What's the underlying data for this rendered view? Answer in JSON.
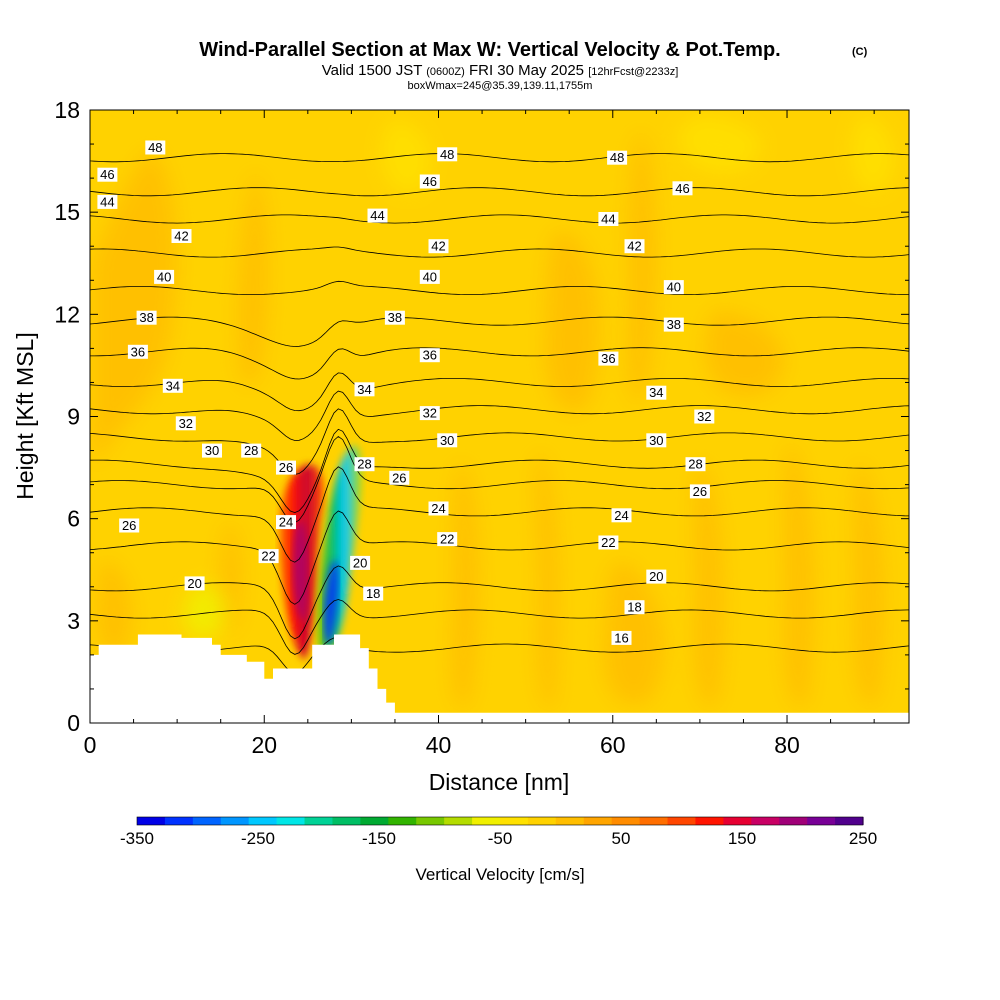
{
  "chart_data": {
    "type": "heatmap",
    "title": "Wind-Parallel Section at Max W: Vertical Velocity & Pot.Temp.",
    "title_mark": "(C)",
    "subtitle": {
      "valid": "Valid 1500 JST",
      "utc": "(0600Z)",
      "date": "FRI 30 May 2025",
      "forecast": "[12hrFcst@2233z]"
    },
    "box_info": "boxWmax=245@35.39,139.11,1755m",
    "xlabel": "Distance [nm]",
    "ylabel": "Height [Kft MSL]",
    "xlim": [
      0,
      94
    ],
    "ylim": [
      0,
      18
    ],
    "x_ticks": [
      "0",
      "20",
      "40",
      "60",
      "80"
    ],
    "y_ticks": [
      "0",
      "3",
      "6",
      "9",
      "12",
      "15",
      "18"
    ],
    "colorbar": {
      "label": "Vertical Velocity [cm/s]",
      "tick_labels": [
        "-350",
        "-250",
        "-150",
        "-50",
        "50",
        "150",
        "250"
      ],
      "range": [
        -350,
        250
      ],
      "colors": [
        "#0000e6",
        "#0032ff",
        "#0064ff",
        "#0096ff",
        "#00c8ff",
        "#00e6e6",
        "#00d296",
        "#00be64",
        "#00aa32",
        "#32b400",
        "#78c800",
        "#b4dc00",
        "#f0f000",
        "#ffe100",
        "#ffd200",
        "#ffbe00",
        "#ffa500",
        "#ff8c00",
        "#ff6e00",
        "#ff4600",
        "#ff1400",
        "#e60032",
        "#c80064",
        "#a00078",
        "#780096",
        "#50008c"
      ]
    },
    "terrain_kft": [
      [
        0,
        2.0
      ],
      [
        1,
        2.0
      ],
      [
        1,
        2.3
      ],
      [
        5.5,
        2.3
      ],
      [
        5.5,
        2.6
      ],
      [
        10.5,
        2.6
      ],
      [
        10.5,
        2.5
      ],
      [
        14,
        2.5
      ],
      [
        14,
        2.3
      ],
      [
        15,
        2.3
      ],
      [
        15,
        2.0
      ],
      [
        18,
        2.0
      ],
      [
        18,
        1.8
      ],
      [
        20,
        1.8
      ],
      [
        20,
        1.3
      ],
      [
        21,
        1.3
      ],
      [
        21,
        1.6
      ],
      [
        25.5,
        1.6
      ],
      [
        25.5,
        2.3
      ],
      [
        28,
        2.3
      ],
      [
        28,
        2.6
      ],
      [
        31,
        2.6
      ],
      [
        31,
        2.2
      ],
      [
        32,
        2.2
      ],
      [
        32,
        1.6
      ],
      [
        33,
        1.6
      ],
      [
        33,
        1.0
      ],
      [
        34,
        1.0
      ],
      [
        34,
        0.6
      ],
      [
        35,
        0.6
      ],
      [
        35,
        0.3
      ],
      [
        94,
        0.3
      ]
    ],
    "updraft": {
      "name": "",
      "x": 23.5,
      "y": 5.0,
      "w_max_cm_s": 245
    },
    "downdraft": {
      "name": "",
      "x": 28.0,
      "y": 4.0,
      "w_min_cm_s": -350
    },
    "theta_contours": [
      {
        "label": "16",
        "y": 2.2
      },
      {
        "label": "18",
        "y": 3.2
      },
      {
        "label": "20",
        "y": 4.0
      },
      {
        "label": "22",
        "y": 5.2
      },
      {
        "label": "24",
        "y": 6.2
      },
      {
        "label": "26",
        "y": 7.0
      },
      {
        "label": "28",
        "y": 7.6
      },
      {
        "label": "30",
        "y": 8.4
      },
      {
        "label": "32",
        "y": 9.2
      },
      {
        "label": "34",
        "y": 10.0
      },
      {
        "label": "36",
        "y": 10.9
      },
      {
        "label": "38",
        "y": 11.8
      },
      {
        "label": "40",
        "y": 12.7
      },
      {
        "label": "42",
        "y": 13.8
      },
      {
        "label": "44",
        "y": 14.8
      },
      {
        "label": "46",
        "y": 15.6
      },
      {
        "label": "48",
        "y": 16.6
      }
    ],
    "contour_labels": [
      {
        "text": "48",
        "x": 7.5,
        "y": 16.9
      },
      {
        "text": "46",
        "x": 2.0,
        "y": 16.1
      },
      {
        "text": "44",
        "x": 2.0,
        "y": 15.3
      },
      {
        "text": "42",
        "x": 10.5,
        "y": 14.3
      },
      {
        "text": "40",
        "x": 8.5,
        "y": 13.1
      },
      {
        "text": "38",
        "x": 6.5,
        "y": 11.9
      },
      {
        "text": "36",
        "x": 5.5,
        "y": 10.9
      },
      {
        "text": "34",
        "x": 9.5,
        "y": 9.9
      },
      {
        "text": "32",
        "x": 11.0,
        "y": 8.8
      },
      {
        "text": "30",
        "x": 14.0,
        "y": 8.0
      },
      {
        "text": "28",
        "x": 18.5,
        "y": 8.0
      },
      {
        "text": "26",
        "x": 22.5,
        "y": 7.5
      },
      {
        "text": "26",
        "x": 4.5,
        "y": 5.8
      },
      {
        "text": "24",
        "x": 22.5,
        "y": 5.9
      },
      {
        "text": "22",
        "x": 20.5,
        "y": 4.9
      },
      {
        "text": "20",
        "x": 12.0,
        "y": 4.1
      },
      {
        "text": "48",
        "x": 41.0,
        "y": 16.7
      },
      {
        "text": "46",
        "x": 39.0,
        "y": 15.9
      },
      {
        "text": "44",
        "x": 33.0,
        "y": 14.9
      },
      {
        "text": "42",
        "x": 40.0,
        "y": 14.0
      },
      {
        "text": "40",
        "x": 39.0,
        "y": 13.1
      },
      {
        "text": "38",
        "x": 35.0,
        "y": 11.9
      },
      {
        "text": "36",
        "x": 39.0,
        "y": 10.8
      },
      {
        "text": "34",
        "x": 31.5,
        "y": 9.8
      },
      {
        "text": "32",
        "x": 39.0,
        "y": 9.1
      },
      {
        "text": "30",
        "x": 41.0,
        "y": 8.3
      },
      {
        "text": "28",
        "x": 31.5,
        "y": 7.6
      },
      {
        "text": "26",
        "x": 35.5,
        "y": 7.2
      },
      {
        "text": "24",
        "x": 40.0,
        "y": 6.3
      },
      {
        "text": "22",
        "x": 41.0,
        "y": 5.4
      },
      {
        "text": "20",
        "x": 31.0,
        "y": 4.7
      },
      {
        "text": "18",
        "x": 32.5,
        "y": 3.8
      },
      {
        "text": "48",
        "x": 60.5,
        "y": 16.6
      },
      {
        "text": "46",
        "x": 68.0,
        "y": 15.7
      },
      {
        "text": "44",
        "x": 59.5,
        "y": 14.8
      },
      {
        "text": "42",
        "x": 62.5,
        "y": 14.0
      },
      {
        "text": "40",
        "x": 67.0,
        "y": 12.8
      },
      {
        "text": "38",
        "x": 67.0,
        "y": 11.7
      },
      {
        "text": "36",
        "x": 59.5,
        "y": 10.7
      },
      {
        "text": "34",
        "x": 65.0,
        "y": 9.7
      },
      {
        "text": "32",
        "x": 70.5,
        "y": 9.0
      },
      {
        "text": "30",
        "x": 65.0,
        "y": 8.3
      },
      {
        "text": "28",
        "x": 69.5,
        "y": 7.6
      },
      {
        "text": "26",
        "x": 70.0,
        "y": 6.8
      },
      {
        "text": "24",
        "x": 61.0,
        "y": 6.1
      },
      {
        "text": "22",
        "x": 59.5,
        "y": 5.3
      },
      {
        "text": "20",
        "x": 65.0,
        "y": 4.3
      },
      {
        "text": "18",
        "x": 62.5,
        "y": 3.4
      },
      {
        "text": "16",
        "x": 61.0,
        "y": 2.5
      }
    ]
  }
}
